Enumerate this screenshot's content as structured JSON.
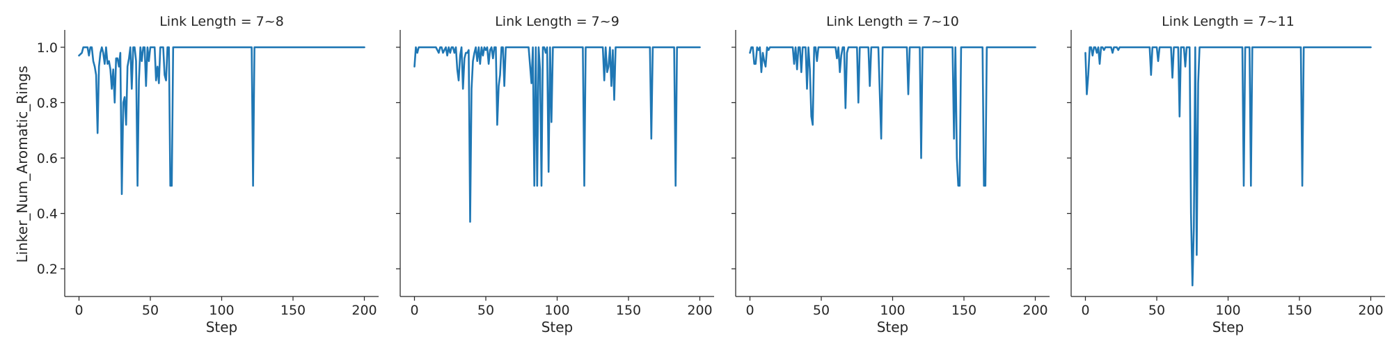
{
  "chart_data": {
    "type": "line",
    "ylabel": "Linker_Num_Aromatic_Rings",
    "ylim": [
      0.1,
      1.05
    ],
    "yticks": [
      0.2,
      0.4,
      0.6,
      0.8,
      1.0
    ],
    "ytick_labels": [
      "0.2",
      "0.4",
      "0.6",
      "0.8",
      "1.0"
    ],
    "shared_y": true,
    "grid": false,
    "line_color": "#1f77b4",
    "panels": [
      {
        "title": "Link Length = 7~8",
        "xlabel": "Step",
        "xlim": [
          -10,
          210
        ],
        "xticks": [
          0,
          50,
          100,
          150,
          200
        ],
        "xtick_labels": [
          "0",
          "50",
          "100",
          "150",
          "200"
        ],
        "series": [
          {
            "x": [
              0,
              2,
              3,
              4,
              5,
              6,
              7,
              8,
              9,
              10,
              11,
              12,
              13,
              14,
              15,
              16,
              17,
              18,
              19,
              20,
              21,
              22,
              23,
              24,
              25,
              26,
              27,
              28,
              29,
              30,
              31,
              32,
              33,
              34,
              35,
              36,
              37,
              38,
              39,
              40,
              41,
              42,
              43,
              44,
              45,
              46,
              47,
              48,
              49,
              50,
              51,
              52,
              53,
              54,
              55,
              56,
              57,
              58,
              59,
              60,
              61,
              62,
              63,
              64,
              65,
              66,
              67,
              68,
              69,
              70,
              80,
              100,
              120,
              121,
              122,
              123,
              124,
              140,
              160,
              180,
              200
            ],
            "y": [
              0.97,
              0.98,
              1.0,
              1.0,
              1.0,
              1.0,
              0.97,
              1.0,
              1.0,
              0.95,
              0.93,
              0.9,
              0.69,
              0.93,
              0.98,
              1.0,
              0.98,
              0.94,
              1.0,
              0.94,
              0.95,
              0.92,
              0.85,
              0.92,
              0.8,
              0.96,
              0.96,
              0.93,
              0.98,
              0.47,
              0.8,
              0.82,
              0.72,
              0.93,
              0.96,
              1.0,
              0.85,
              1.0,
              1.0,
              0.95,
              0.5,
              0.88,
              1.0,
              0.95,
              1.0,
              1.0,
              0.86,
              1.0,
              0.95,
              1.0,
              1.0,
              1.0,
              1.0,
              0.88,
              0.93,
              0.87,
              1.0,
              1.0,
              1.0,
              0.9,
              0.88,
              1.0,
              1.0,
              0.5,
              0.5,
              1.0,
              1.0,
              1.0,
              1.0,
              1.0,
              1.0,
              1.0,
              1.0,
              1.0,
              0.5,
              1.0,
              1.0,
              1.0,
              1.0,
              1.0,
              1.0
            ]
          }
        ]
      },
      {
        "title": "Link Length = 7~9",
        "xlabel": "Step",
        "xlim": [
          -10,
          210
        ],
        "xticks": [
          0,
          50,
          100,
          150,
          200
        ],
        "xtick_labels": [
          "0",
          "50",
          "100",
          "150",
          "200"
        ],
        "series": [
          {
            "x": [
              0,
              1,
              2,
              3,
              5,
              10,
              15,
              17,
              18,
              19,
              20,
              22,
              23,
              24,
              25,
              26,
              27,
              28,
              29,
              30,
              31,
              32,
              33,
              34,
              35,
              36,
              37,
              38,
              39,
              40,
              41,
              42,
              43,
              44,
              45,
              46,
              47,
              48,
              49,
              50,
              51,
              52,
              53,
              54,
              55,
              56,
              57,
              58,
              59,
              60,
              61,
              62,
              63,
              64,
              65,
              66,
              70,
              75,
              80,
              82,
              83,
              84,
              85,
              86,
              87,
              88,
              89,
              90,
              91,
              92,
              93,
              94,
              95,
              96,
              97,
              98,
              100,
              110,
              118,
              119,
              120,
              121,
              125,
              130,
              132,
              133,
              134,
              135,
              136,
              137,
              138,
              139,
              140,
              141,
              142,
              143,
              150,
              160,
              165,
              166,
              167,
              168,
              175,
              182,
              183,
              184,
              185,
              190,
              200
            ],
            "y": [
              0.93,
              1.0,
              0.98,
              1.0,
              1.0,
              1.0,
              1.0,
              0.98,
              1.0,
              1.0,
              0.98,
              1.0,
              0.97,
              1.0,
              0.98,
              1.0,
              1.0,
              0.98,
              1.0,
              0.92,
              0.88,
              0.97,
              1.0,
              0.85,
              0.96,
              0.98,
              0.98,
              0.99,
              0.37,
              0.85,
              0.95,
              0.98,
              1.0,
              0.95,
              1.0,
              0.94,
              1.0,
              0.97,
              1.0,
              0.99,
              1.0,
              0.94,
              0.99,
              1.0,
              0.96,
              1.0,
              1.0,
              0.72,
              0.86,
              0.9,
              1.0,
              1.0,
              0.86,
              1.0,
              1.0,
              1.0,
              1.0,
              1.0,
              1.0,
              0.87,
              1.0,
              0.5,
              1.0,
              0.5,
              1.0,
              0.92,
              0.5,
              1.0,
              1.0,
              0.98,
              1.0,
              0.55,
              1.0,
              0.73,
              1.0,
              1.0,
              1.0,
              1.0,
              1.0,
              0.5,
              1.0,
              1.0,
              1.0,
              1.0,
              1.0,
              0.88,
              1.0,
              0.91,
              0.93,
              1.0,
              0.86,
              0.99,
              0.81,
              1.0,
              1.0,
              1.0,
              1.0,
              1.0,
              1.0,
              0.67,
              1.0,
              1.0,
              1.0,
              1.0,
              0.5,
              1.0,
              1.0,
              1.0,
              1.0
            ]
          }
        ]
      },
      {
        "title": "Link Length = 7~10",
        "xlabel": "Step",
        "xlim": [
          -10,
          210
        ],
        "xticks": [
          0,
          50,
          100,
          150,
          200
        ],
        "xtick_labels": [
          "0",
          "50",
          "100",
          "150",
          "200"
        ],
        "series": [
          {
            "x": [
              0,
              1,
              2,
              3,
              4,
              5,
              6,
              7,
              8,
              9,
              10,
              11,
              12,
              13,
              14,
              15,
              20,
              25,
              30,
              31,
              32,
              33,
              34,
              35,
              36,
              37,
              38,
              39,
              40,
              41,
              42,
              43,
              44,
              45,
              46,
              47,
              48,
              50,
              55,
              60,
              61,
              62,
              63,
              64,
              65,
              66,
              67,
              68,
              69,
              70,
              71,
              72,
              73,
              75,
              76,
              77,
              78,
              79,
              80,
              81,
              83,
              84,
              85,
              86,
              87,
              88,
              90,
              92,
              93,
              94,
              95,
              96,
              100,
              110,
              111,
              112,
              113,
              118,
              119,
              120,
              121,
              122,
              130,
              140,
              141,
              142,
              143,
              144,
              145,
              146,
              147,
              148,
              150,
              160,
              163,
              164,
              165,
              166,
              167,
              170,
              180,
              190,
              200
            ],
            "y": [
              0.98,
              1.0,
              1.0,
              0.94,
              0.94,
              1.0,
              0.99,
              1.0,
              0.91,
              0.98,
              0.95,
              0.93,
              1.0,
              0.99,
              1.0,
              1.0,
              1.0,
              1.0,
              1.0,
              0.94,
              1.0,
              0.92,
              1.0,
              1.0,
              0.91,
              1.0,
              1.0,
              1.0,
              0.85,
              1.0,
              0.92,
              0.75,
              0.72,
              1.0,
              1.0,
              0.95,
              1.0,
              1.0,
              1.0,
              1.0,
              0.96,
              1.0,
              0.91,
              0.97,
              1.0,
              1.0,
              0.78,
              0.98,
              1.0,
              1.0,
              1.0,
              1.0,
              1.0,
              1.0,
              0.8,
              1.0,
              1.0,
              1.0,
              1.0,
              1.0,
              1.0,
              0.86,
              1.0,
              1.0,
              1.0,
              1.0,
              1.0,
              0.67,
              1.0,
              1.0,
              1.0,
              1.0,
              1.0,
              1.0,
              0.83,
              1.0,
              1.0,
              1.0,
              1.0,
              0.6,
              1.0,
              1.0,
              1.0,
              1.0,
              1.0,
              1.0,
              0.67,
              1.0,
              0.6,
              0.5,
              0.5,
              1.0,
              1.0,
              1.0,
              1.0,
              0.5,
              0.5,
              1.0,
              1.0,
              1.0,
              1.0,
              1.0,
              1.0
            ]
          }
        ]
      },
      {
        "title": "Link Length = 7~11",
        "xlabel": "Step",
        "xlim": [
          -10,
          210
        ],
        "xticks": [
          0,
          50,
          100,
          150,
          200
        ],
        "xtick_labels": [
          "0",
          "50",
          "100",
          "150",
          "200"
        ],
        "series": [
          {
            "x": [
              0,
              1,
              2,
              3,
              4,
              5,
              6,
              7,
              8,
              9,
              10,
              11,
              12,
              13,
              14,
              15,
              16,
              17,
              18,
              19,
              20,
              21,
              22,
              23,
              24,
              25,
              30,
              35,
              40,
              45,
              46,
              47,
              48,
              50,
              51,
              52,
              53,
              55,
              58,
              59,
              60,
              61,
              62,
              65,
              66,
              67,
              68,
              69,
              70,
              71,
              72,
              73,
              74,
              75,
              76,
              77,
              78,
              79,
              80,
              81,
              85,
              90,
              100,
              110,
              111,
              112,
              113,
              114,
              115,
              116,
              117,
              120,
              130,
              140,
              150,
              151,
              152,
              153,
              160,
              180,
              200
            ],
            "y": [
              0.98,
              0.83,
              0.9,
              1.0,
              1.0,
              0.97,
              1.0,
              1.0,
              0.98,
              1.0,
              0.94,
              1.0,
              1.0,
              0.99,
              1.0,
              1.0,
              1.0,
              1.0,
              1.0,
              0.98,
              1.0,
              1.0,
              1.0,
              0.99,
              1.0,
              1.0,
              1.0,
              1.0,
              1.0,
              1.0,
              0.9,
              1.0,
              1.0,
              1.0,
              0.95,
              1.0,
              1.0,
              1.0,
              1.0,
              1.0,
              1.0,
              0.89,
              1.0,
              1.0,
              0.75,
              1.0,
              1.0,
              1.0,
              0.93,
              1.0,
              1.0,
              1.0,
              0.4,
              0.14,
              0.35,
              1.0,
              0.25,
              0.87,
              1.0,
              1.0,
              1.0,
              1.0,
              1.0,
              1.0,
              0.5,
              1.0,
              1.0,
              1.0,
              1.0,
              0.5,
              1.0,
              1.0,
              1.0,
              1.0,
              1.0,
              1.0,
              0.5,
              1.0,
              1.0,
              1.0,
              1.0
            ]
          }
        ]
      }
    ]
  }
}
